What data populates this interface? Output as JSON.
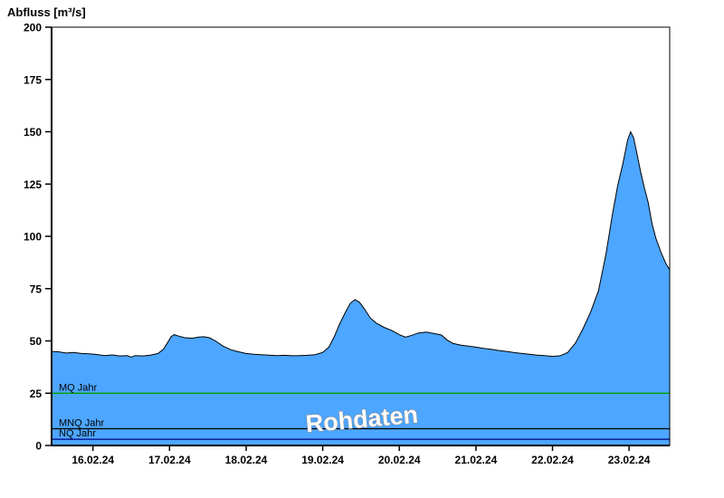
{
  "title": "Abfluss [m³/s]",
  "watermark": "Rohdaten",
  "chart_data": {
    "type": "area",
    "title": "Abfluss [m³/s]",
    "xlabel": "",
    "ylabel": "Abfluss [m³/s]",
    "ylim": [
      0,
      200
    ],
    "yticks": [
      0,
      25,
      50,
      75,
      100,
      125,
      150,
      175,
      200
    ],
    "x_labels": [
      "16.02.24",
      "17.02.24",
      "18.02.24",
      "19.02.24",
      "20.02.24",
      "21.02.24",
      "22.02.24",
      "23.02.24"
    ],
    "x_label_days": [
      16,
      17,
      18,
      19,
      20,
      21,
      22,
      23
    ],
    "x_domain_days": [
      15.46,
      23.53
    ],
    "grid": false,
    "legend": "none",
    "fill_color": "#4da6ff",
    "line_color": "#000000",
    "series": [
      {
        "name": "Abfluss Rohdaten",
        "x": [
          15.46,
          15.55,
          15.65,
          15.75,
          15.85,
          15.95,
          16.05,
          16.15,
          16.25,
          16.35,
          16.45,
          16.5,
          16.55,
          16.65,
          16.75,
          16.85,
          16.92,
          16.98,
          17.02,
          17.06,
          17.12,
          17.2,
          17.3,
          17.38,
          17.45,
          17.52,
          17.6,
          17.7,
          17.8,
          17.9,
          18.0,
          18.1,
          18.2,
          18.3,
          18.4,
          18.5,
          18.6,
          18.7,
          18.8,
          18.9,
          19.0,
          19.08,
          19.15,
          19.22,
          19.3,
          19.36,
          19.42,
          19.48,
          19.55,
          19.62,
          19.7,
          19.8,
          19.9,
          20.0,
          20.08,
          20.15,
          20.25,
          20.35,
          20.45,
          20.55,
          20.62,
          20.7,
          20.8,
          20.9,
          21.0,
          21.1,
          21.2,
          21.3,
          21.4,
          21.5,
          21.6,
          21.7,
          21.8,
          21.9,
          22.0,
          22.1,
          22.2,
          22.3,
          22.4,
          22.5,
          22.6,
          22.7,
          22.78,
          22.85,
          22.92,
          22.98,
          23.02,
          23.06,
          23.1,
          23.15,
          23.2,
          23.25,
          23.3,
          23.35,
          23.42,
          23.48,
          23.53
        ],
        "values": [
          45,
          44.8,
          44.2,
          44.5,
          44,
          43.8,
          43.5,
          43,
          43.3,
          42.8,
          43,
          42.2,
          43,
          42.8,
          43.2,
          44,
          46,
          49.5,
          52,
          53,
          52.3,
          51.5,
          51.3,
          51.8,
          52,
          51.5,
          50,
          47.5,
          45.8,
          44.8,
          44,
          43.6,
          43.4,
          43.2,
          43,
          43.1,
          42.9,
          43,
          43.1,
          43.4,
          44.5,
          47,
          52,
          58,
          64,
          68,
          69.8,
          68.5,
          65,
          61,
          58.5,
          56.5,
          55,
          53,
          51.8,
          52.5,
          53.8,
          54.2,
          53.6,
          52.8,
          50.5,
          48.8,
          48,
          47.5,
          47,
          46.4,
          46,
          45.4,
          45,
          44.4,
          44,
          43.6,
          43.2,
          43,
          42.6,
          42.9,
          44.5,
          49,
          56,
          64,
          74,
          92,
          110,
          124,
          135,
          146,
          150,
          147,
          140,
          131,
          123,
          116,
          106,
          99,
          92,
          87,
          84
        ]
      }
    ],
    "reference_lines": [
      {
        "label": "MQ Jahr",
        "value": 25,
        "color": "#00a000"
      },
      {
        "label": "MNQ Jahr",
        "value": 8,
        "color": "#000000"
      },
      {
        "label": "NQ Jahr",
        "value": 3,
        "color": "#000080"
      }
    ]
  }
}
